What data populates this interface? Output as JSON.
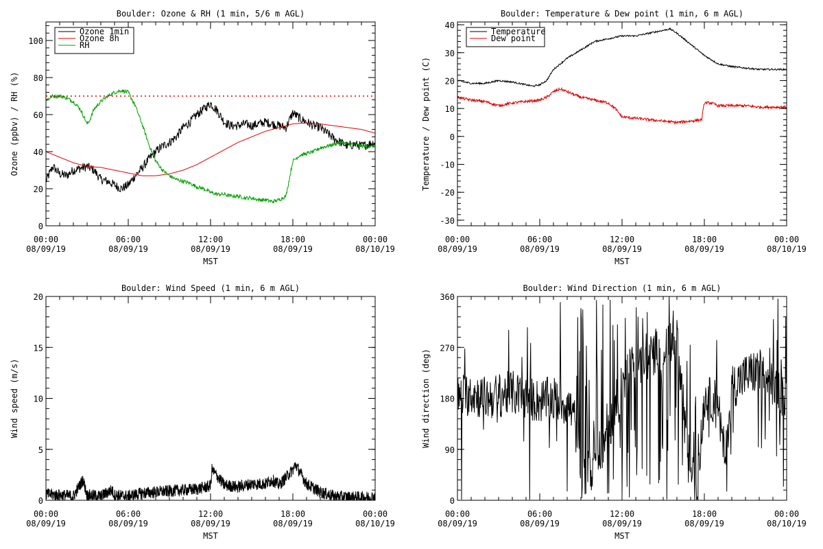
{
  "chart_data": [
    {
      "type": "line",
      "title": "Boulder: Ozone & RH (1 min, 5/6 m AGL)",
      "xlabel": "MST",
      "ylabel": "Ozone (ppbv) / RH (%)",
      "x_ticks": [
        {
          "time": "00:00",
          "date": "08/09/19"
        },
        {
          "time": "06:00",
          "date": "08/09/19"
        },
        {
          "time": "12:00",
          "date": "08/09/19"
        },
        {
          "time": "18:00",
          "date": "08/09/19"
        },
        {
          "time": "00:00",
          "date": "08/10/19"
        }
      ],
      "xlim_hours": [
        0,
        24
      ],
      "ylim": [
        0,
        110
      ],
      "y_ticks": [
        0,
        20,
        40,
        60,
        80,
        100
      ],
      "legend": {
        "placement": "top-left",
        "entries": [
          {
            "label": "Ozone 1min",
            "color": "#000000"
          },
          {
            "label": "Ozone 8h",
            "color": "#e00000"
          },
          {
            "label": "RH",
            "color": "#00a000"
          }
        ]
      },
      "reference_line": {
        "y": 70,
        "style": "dotted",
        "color": "#e00000"
      },
      "series": [
        {
          "name": "Ozone 1min",
          "color": "#000000",
          "noise": 2.5,
          "x": [
            0,
            0.5,
            1,
            1.5,
            2,
            2.5,
            3,
            3.5,
            4,
            4.5,
            5,
            5.5,
            6,
            6.5,
            7,
            7.5,
            8,
            8.5,
            9,
            9.5,
            10,
            10.5,
            11,
            11.5,
            12,
            12.5,
            13,
            13.5,
            14,
            14.5,
            15,
            15.5,
            16,
            16.5,
            17,
            17.5,
            18,
            18.5,
            19,
            19.5,
            20,
            20.5,
            21,
            21.5,
            22,
            22.5,
            23,
            23.5,
            24
          ],
          "y": [
            24,
            32,
            28,
            27,
            30,
            31,
            32,
            30,
            25,
            24,
            22,
            20,
            22,
            27,
            31,
            36,
            40,
            43,
            45,
            48,
            53,
            56,
            60,
            63,
            66,
            62,
            56,
            54,
            54,
            55,
            54,
            55,
            56,
            55,
            54,
            53,
            61,
            58,
            56,
            54,
            53,
            50,
            47,
            45,
            43,
            44,
            43,
            44,
            45
          ]
        },
        {
          "name": "Ozone 8h",
          "color": "#e00000",
          "noise": 0,
          "x": [
            0,
            1,
            2,
            3,
            4,
            5,
            6,
            7,
            8,
            9,
            10,
            11,
            12,
            13,
            14,
            15,
            16,
            17,
            18,
            19,
            20,
            21,
            22,
            23,
            24
          ],
          "y": [
            40,
            37,
            34,
            32,
            31.5,
            30,
            28.5,
            27,
            27,
            28,
            30,
            33,
            37,
            41,
            45,
            48,
            51,
            53,
            55,
            55.5,
            55,
            54,
            53,
            52,
            50
          ]
        },
        {
          "name": "RH",
          "color": "#00a000",
          "noise": 1.0,
          "x": [
            0,
            0.5,
            1,
            1.5,
            2,
            2.5,
            3,
            3.2,
            3.5,
            4,
            4.5,
            5,
            5.5,
            6,
            6.5,
            7,
            7.5,
            8,
            8.5,
            9,
            9.5,
            10,
            10.5,
            11,
            11.5,
            12,
            12.5,
            13,
            13.5,
            14,
            14.5,
            15,
            15.5,
            16,
            16.5,
            17,
            17.5,
            18,
            18.5,
            19,
            19.5,
            20,
            20.5,
            21,
            21.5,
            22,
            22.5,
            23,
            23.5,
            24
          ],
          "y": [
            68,
            70,
            70,
            69,
            67,
            63,
            55,
            57,
            63,
            67,
            70,
            72,
            73,
            72,
            65,
            55,
            44,
            35,
            30,
            27,
            25,
            24,
            23,
            21,
            20,
            18,
            17,
            17,
            16,
            16,
            15,
            15,
            14,
            14,
            13,
            14,
            16,
            35,
            38,
            39,
            40,
            42,
            43,
            44,
            45,
            44,
            44,
            43,
            43,
            43
          ]
        }
      ]
    },
    {
      "type": "line",
      "title": "Boulder: Temperature & Dew point (1 min, 6 m AGL)",
      "xlabel": "MST",
      "ylabel": "Temperature / Dew point (C)",
      "x_ticks": [
        {
          "time": "00:00",
          "date": "08/09/19"
        },
        {
          "time": "06:00",
          "date": "08/09/19"
        },
        {
          "time": "12:00",
          "date": "08/09/19"
        },
        {
          "time": "18:00",
          "date": "08/09/19"
        },
        {
          "time": "00:00",
          "date": "08/10/19"
        }
      ],
      "xlim_hours": [
        0,
        24
      ],
      "ylim": [
        -32,
        41
      ],
      "y_ticks": [
        -30,
        -20,
        -10,
        0,
        10,
        20,
        30,
        40
      ],
      "legend": {
        "placement": "top-left",
        "entries": [
          {
            "label": "Temperature",
            "color": "#000000"
          },
          {
            "label": "Dew point",
            "color": "#e00000"
          }
        ]
      },
      "series": [
        {
          "name": "Temperature",
          "color": "#000000",
          "noise": 0.3,
          "x": [
            0,
            1,
            2,
            3,
            4,
            5,
            5.5,
            6,
            6.5,
            7,
            8,
            9,
            10,
            11,
            12,
            13,
            14,
            15,
            15.5,
            16,
            17,
            18,
            19,
            20,
            21,
            22,
            23,
            24
          ],
          "y": [
            20,
            19,
            19,
            20,
            19.5,
            18.5,
            18,
            18.5,
            20,
            24,
            28,
            31,
            34,
            35,
            36,
            36,
            37,
            38,
            38.5,
            37,
            33,
            29,
            26,
            25,
            24.5,
            24,
            24,
            24
          ]
        },
        {
          "name": "Dew point",
          "color": "#e00000",
          "noise": 0.5,
          "x": [
            0,
            1,
            2,
            3,
            4,
            5,
            6,
            6.5,
            7,
            7.5,
            8,
            9,
            10,
            11,
            11.5,
            12,
            13,
            14,
            15,
            16,
            17,
            17.8,
            18,
            18.5,
            19,
            20,
            21,
            22,
            23,
            24
          ],
          "y": [
            14,
            13,
            12.5,
            11,
            12,
            12.5,
            13,
            14,
            16,
            17,
            16,
            14,
            13,
            12,
            10,
            7,
            6.5,
            6,
            5.5,
            5,
            5.5,
            6,
            12,
            12,
            11,
            11,
            11,
            10.5,
            10.5,
            10.5
          ]
        }
      ]
    },
    {
      "type": "line",
      "title": "Boulder: Wind Speed (1 min, 6 m AGL)",
      "xlabel": "MST",
      "ylabel": "Wind speed (m/s)",
      "x_ticks": [
        {
          "time": "00:00",
          "date": "08/09/19"
        },
        {
          "time": "06:00",
          "date": "08/09/19"
        },
        {
          "time": "12:00",
          "date": "08/09/19"
        },
        {
          "time": "18:00",
          "date": "08/09/19"
        },
        {
          "time": "00:00",
          "date": "08/10/19"
        }
      ],
      "xlim_hours": [
        0,
        24
      ],
      "ylim": [
        0,
        20
      ],
      "y_ticks": [
        0,
        5,
        10,
        15,
        20
      ],
      "series": [
        {
          "color": "#000000",
          "noise": 0.6,
          "x": [
            0,
            1,
            2,
            2.7,
            3,
            4,
            4.8,
            5,
            6,
            7,
            8,
            9,
            10,
            11,
            12,
            12.1,
            13,
            14,
            15,
            16,
            16.5,
            17,
            18,
            18.2,
            19,
            20,
            21,
            22,
            23,
            24
          ],
          "y": [
            0.6,
            0.5,
            0.4,
            2.0,
            0.5,
            0.4,
            1.0,
            0.5,
            0.4,
            0.7,
            0.8,
            0.9,
            1.0,
            1.1,
            1.4,
            3.0,
            1.5,
            1.3,
            1.6,
            1.6,
            2.0,
            1.5,
            3.0,
            3.5,
            1.6,
            0.8,
            0.4,
            0.3,
            0.3,
            0.3
          ]
        }
      ]
    },
    {
      "type": "line",
      "title": "Boulder: Wind Direction (1 min, 6 m AGL)",
      "xlabel": "MST",
      "ylabel": "Wind direction (deg)",
      "x_ticks": [
        {
          "time": "00:00",
          "date": "08/09/19"
        },
        {
          "time": "06:00",
          "date": "08/09/19"
        },
        {
          "time": "12:00",
          "date": "08/09/19"
        },
        {
          "time": "18:00",
          "date": "08/09/19"
        },
        {
          "time": "00:00",
          "date": "08/10/19"
        }
      ],
      "xlim_hours": [
        0,
        24
      ],
      "ylim": [
        0,
        360
      ],
      "y_ticks": [
        0,
        90,
        180,
        270,
        360
      ],
      "series": [
        {
          "color": "#000000",
          "noise": 40,
          "x": [
            0,
            1,
            2,
            3,
            4,
            5,
            6,
            7,
            8,
            8.5,
            9,
            10,
            11,
            12,
            13,
            14,
            15,
            16,
            17,
            17.5,
            18,
            19,
            19.5,
            20,
            21,
            22,
            23,
            24
          ],
          "y": [
            180,
            190,
            180,
            185,
            190,
            180,
            175,
            180,
            170,
            150,
            40,
            60,
            120,
            200,
            250,
            260,
            270,
            280,
            50,
            20,
            180,
            175,
            60,
            200,
            220,
            230,
            200,
            180
          ]
        }
      ]
    }
  ]
}
